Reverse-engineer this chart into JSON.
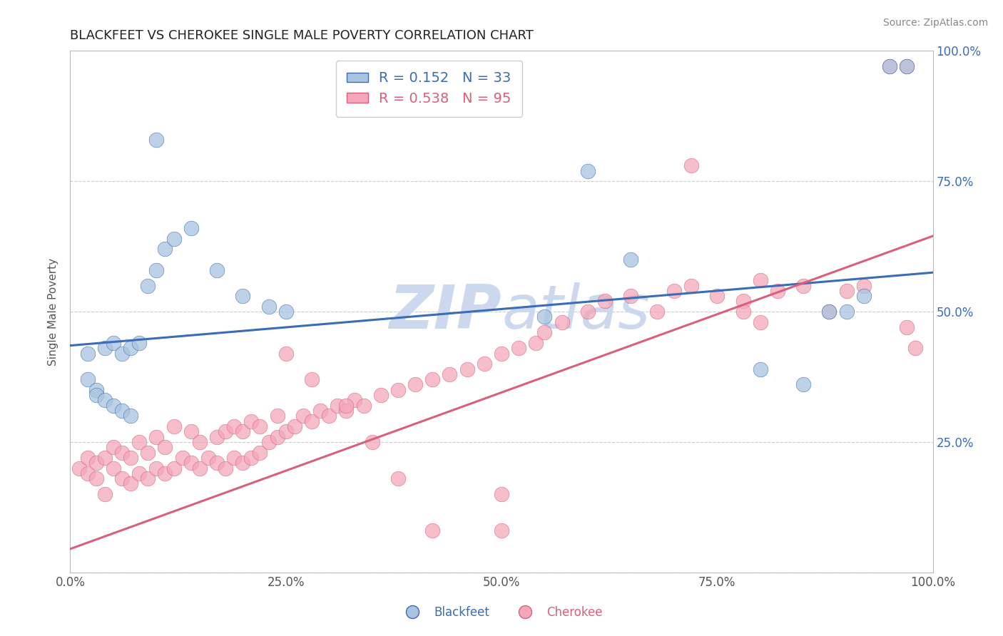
{
  "title": "BLACKFEET VS CHEROKEE SINGLE MALE POVERTY CORRELATION CHART",
  "source_text": "Source: ZipAtlas.com",
  "ylabel": "Single Male Poverty",
  "xlim": [
    0,
    1
  ],
  "ylim": [
    0,
    1
  ],
  "xticks": [
    0,
    0.25,
    0.5,
    0.75,
    1.0
  ],
  "xticklabels": [
    "0.0%",
    "25.0%",
    "50.0%",
    "75.0%",
    "100.0%"
  ],
  "yticks": [
    0,
    0.25,
    0.5,
    0.75,
    1.0
  ],
  "right_yticklabels": [
    "",
    "25.0%",
    "50.0%",
    "75.0%",
    "100.0%"
  ],
  "blackfeet_R": 0.152,
  "blackfeet_N": 33,
  "cherokee_R": 0.538,
  "cherokee_N": 95,
  "blackfeet_color": "#a8c4e0",
  "cherokee_color": "#f4a7b9",
  "blackfeet_line_color": "#3a6db5",
  "cherokee_line_color": "#d9607a",
  "watermark_color": "#ccd8ed",
  "background_color": "#ffffff",
  "grid_color": "#cccccc",
  "title_fontsize": 13,
  "blue_trend_x0": 0.0,
  "blue_trend_y0": 0.435,
  "blue_trend_x1": 1.0,
  "blue_trend_y1": 0.575,
  "pink_trend_x0": 0.0,
  "pink_trend_y0": 0.045,
  "pink_trend_x1": 1.0,
  "pink_trend_y1": 0.645,
  "blackfeet_x": [
    0.02,
    0.04,
    0.05,
    0.06,
    0.07,
    0.08,
    0.09,
    0.1,
    0.11,
    0.12,
    0.02,
    0.03,
    0.03,
    0.04,
    0.05,
    0.06,
    0.07,
    0.14,
    0.17,
    0.2,
    0.23,
    0.25,
    0.1,
    0.55,
    0.6,
    0.65,
    0.8,
    0.85,
    0.88,
    0.9,
    0.92,
    0.95,
    0.97
  ],
  "blackfeet_y": [
    0.42,
    0.43,
    0.44,
    0.42,
    0.43,
    0.44,
    0.55,
    0.58,
    0.62,
    0.64,
    0.37,
    0.35,
    0.34,
    0.33,
    0.32,
    0.31,
    0.3,
    0.66,
    0.58,
    0.53,
    0.51,
    0.5,
    0.83,
    0.49,
    0.77,
    0.6,
    0.39,
    0.36,
    0.5,
    0.5,
    0.53,
    0.97,
    0.97
  ],
  "cherokee_x": [
    0.01,
    0.02,
    0.02,
    0.03,
    0.03,
    0.04,
    0.04,
    0.05,
    0.05,
    0.06,
    0.06,
    0.07,
    0.07,
    0.08,
    0.08,
    0.09,
    0.09,
    0.1,
    0.1,
    0.11,
    0.11,
    0.12,
    0.12,
    0.13,
    0.14,
    0.14,
    0.15,
    0.15,
    0.16,
    0.17,
    0.17,
    0.18,
    0.18,
    0.19,
    0.19,
    0.2,
    0.2,
    0.21,
    0.21,
    0.22,
    0.22,
    0.23,
    0.24,
    0.24,
    0.25,
    0.26,
    0.27,
    0.28,
    0.29,
    0.3,
    0.31,
    0.32,
    0.33,
    0.34,
    0.36,
    0.38,
    0.4,
    0.42,
    0.44,
    0.46,
    0.48,
    0.5,
    0.52,
    0.54,
    0.55,
    0.57,
    0.6,
    0.62,
    0.65,
    0.68,
    0.7,
    0.72,
    0.75,
    0.78,
    0.8,
    0.82,
    0.85,
    0.88,
    0.9,
    0.92,
    0.95,
    0.97,
    0.97,
    0.98,
    0.72,
    0.25,
    0.28,
    0.32,
    0.35,
    0.38,
    0.42,
    0.5,
    0.78,
    0.8,
    0.5
  ],
  "cherokee_y": [
    0.2,
    0.19,
    0.22,
    0.18,
    0.21,
    0.15,
    0.22,
    0.2,
    0.24,
    0.18,
    0.23,
    0.17,
    0.22,
    0.19,
    0.25,
    0.18,
    0.23,
    0.2,
    0.26,
    0.19,
    0.24,
    0.2,
    0.28,
    0.22,
    0.21,
    0.27,
    0.2,
    0.25,
    0.22,
    0.21,
    0.26,
    0.2,
    0.27,
    0.22,
    0.28,
    0.21,
    0.27,
    0.22,
    0.29,
    0.23,
    0.28,
    0.25,
    0.26,
    0.3,
    0.27,
    0.28,
    0.3,
    0.29,
    0.31,
    0.3,
    0.32,
    0.31,
    0.33,
    0.32,
    0.34,
    0.35,
    0.36,
    0.37,
    0.38,
    0.39,
    0.4,
    0.42,
    0.43,
    0.44,
    0.46,
    0.48,
    0.5,
    0.52,
    0.53,
    0.5,
    0.54,
    0.55,
    0.53,
    0.52,
    0.56,
    0.54,
    0.55,
    0.5,
    0.54,
    0.55,
    0.97,
    0.97,
    0.47,
    0.43,
    0.78,
    0.42,
    0.37,
    0.32,
    0.25,
    0.18,
    0.08,
    0.08,
    0.5,
    0.48,
    0.15
  ]
}
